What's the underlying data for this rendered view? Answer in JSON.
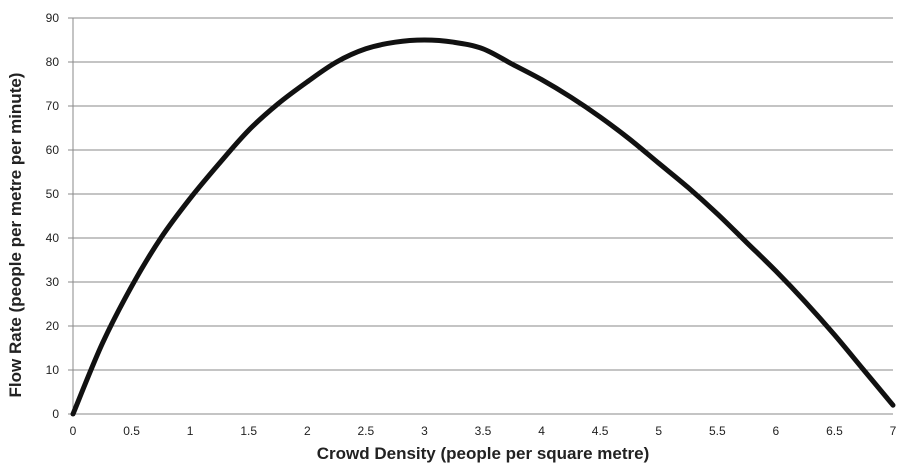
{
  "chart_data": {
    "type": "line",
    "title": "",
    "xlabel": "Crowd Density (people per square metre)",
    "ylabel": "Flow Rate (people per metre per minute)",
    "xlim": [
      0,
      7
    ],
    "ylim": [
      0,
      90
    ],
    "x_ticks": [
      "0",
      "0.5",
      "1",
      "1.5",
      "2",
      "2.5",
      "3",
      "3.5",
      "4",
      "4.5",
      "5",
      "5.5",
      "6",
      "6.5",
      "7"
    ],
    "y_ticks": [
      "0",
      "10",
      "20",
      "30",
      "40",
      "50",
      "60",
      "70",
      "80",
      "90"
    ],
    "grid": "horizontal",
    "legend": "none",
    "series": [
      {
        "color": "#111111",
        "x": [
          0,
          0.25,
          0.5,
          0.75,
          1,
          1.25,
          1.5,
          1.75,
          2,
          2.25,
          2.5,
          2.75,
          3,
          3.25,
          3.5,
          3.75,
          4,
          4.25,
          4.5,
          4.75,
          5,
          5.25,
          5.5,
          5.75,
          6,
          6.25,
          6.5,
          6.75,
          7
        ],
        "y": [
          0,
          16,
          29,
          40,
          49,
          57,
          64.5,
          70.5,
          75.5,
          80,
          83,
          84.5,
          85,
          84.5,
          83,
          79.5,
          76,
          72,
          67.5,
          62.5,
          57,
          51.5,
          45.5,
          39,
          32.5,
          25.5,
          18,
          10,
          2
        ]
      }
    ]
  }
}
